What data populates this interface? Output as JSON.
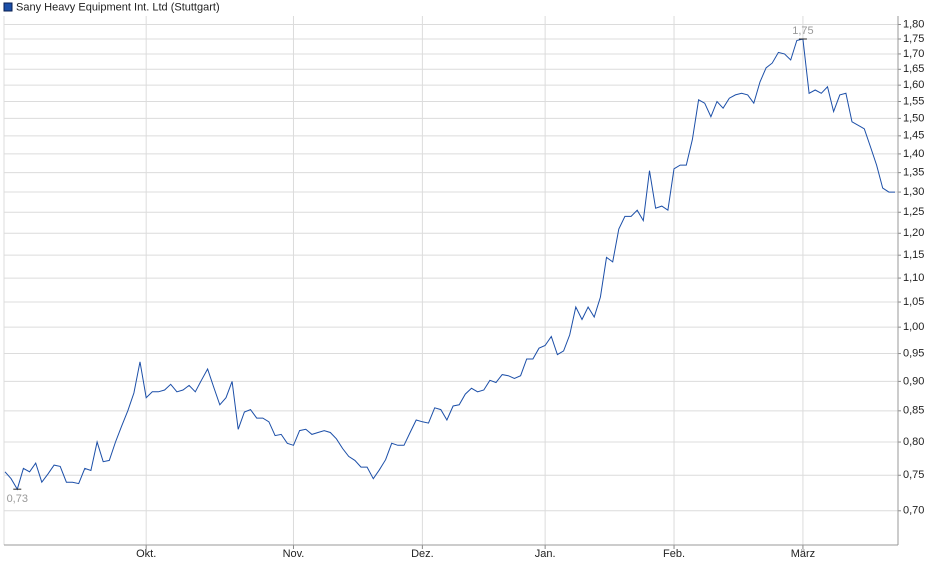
{
  "chart_data": {
    "type": "line",
    "categories": [
      null,
      null,
      null,
      null,
      null,
      null,
      null,
      null,
      null,
      null,
      null,
      null,
      null,
      null,
      null,
      null,
      null,
      null,
      null,
      null,
      null,
      null,
      null,
      "Okt.",
      null,
      null,
      null,
      null,
      null,
      null,
      null,
      null,
      null,
      null,
      null,
      null,
      null,
      null,
      null,
      null,
      null,
      null,
      null,
      null,
      null,
      null,
      null,
      "Nov.",
      null,
      null,
      null,
      null,
      null,
      null,
      null,
      null,
      null,
      null,
      null,
      null,
      null,
      null,
      null,
      null,
      null,
      null,
      null,
      null,
      "Dez.",
      null,
      null,
      null,
      null,
      null,
      null,
      null,
      null,
      null,
      null,
      null,
      null,
      null,
      null,
      null,
      null,
      null,
      null,
      null,
      "Jan.",
      null,
      null,
      null,
      null,
      null,
      null,
      null,
      null,
      null,
      null,
      null,
      null,
      null,
      null,
      null,
      null,
      null,
      null,
      null,
      null,
      "Feb.",
      null,
      null,
      null,
      null,
      null,
      null,
      null,
      null,
      null,
      null,
      null,
      null,
      null,
      null,
      null,
      null,
      null,
      null,
      null,
      null,
      "März",
      null,
      null,
      null,
      null,
      null,
      null,
      null,
      null,
      null,
      null,
      null,
      null,
      null,
      null,
      null
    ],
    "series": [
      {
        "name": "Sany Heavy Equipment Int. Ltd (Stuttgart)",
        "color": "#1c4fa8",
        "values": [
          0.755,
          0.745,
          0.73,
          0.76,
          0.755,
          0.768,
          0.74,
          0.752,
          0.765,
          0.763,
          0.74,
          0.74,
          0.738,
          0.76,
          0.757,
          0.8,
          0.77,
          0.772,
          0.8,
          0.825,
          0.85,
          0.88,
          0.935,
          0.872,
          0.882,
          0.882,
          0.885,
          0.895,
          0.882,
          0.885,
          0.893,
          0.882,
          0.902,
          0.922,
          0.89,
          0.86,
          0.872,
          0.9,
          0.82,
          0.848,
          0.852,
          0.838,
          0.838,
          0.832,
          0.81,
          0.812,
          0.798,
          0.795,
          0.818,
          0.82,
          0.812,
          0.815,
          0.818,
          0.815,
          0.805,
          0.79,
          0.778,
          0.772,
          0.762,
          0.762,
          0.745,
          0.758,
          0.773,
          0.798,
          0.795,
          0.795,
          0.815,
          0.835,
          0.832,
          0.83,
          0.855,
          0.852,
          0.835,
          0.858,
          0.86,
          0.878,
          0.888,
          0.882,
          0.885,
          0.902,
          0.898,
          0.912,
          0.91,
          0.905,
          0.91,
          0.94,
          0.94,
          0.96,
          0.965,
          0.982,
          0.948,
          0.955,
          0.985,
          1.04,
          1.015,
          1.04,
          1.02,
          1.06,
          1.145,
          1.135,
          1.21,
          1.24,
          1.24,
          1.255,
          1.23,
          1.355,
          1.26,
          1.265,
          1.255,
          1.36,
          1.37,
          1.37,
          1.44,
          1.555,
          1.545,
          1.505,
          1.55,
          1.53,
          1.56,
          1.57,
          1.575,
          1.57,
          1.545,
          1.61,
          1.655,
          1.67,
          1.705,
          1.7,
          1.68,
          1.745,
          1.75,
          1.575,
          1.585,
          1.575,
          1.595,
          1.52,
          1.57,
          1.575,
          1.49,
          1.48,
          1.47,
          1.42,
          1.37,
          1.31,
          1.3,
          1.3
        ]
      }
    ],
    "high_label": "1,75",
    "low_label": "0,73",
    "log_scale": true,
    "grid": true,
    "legend": "top-left",
    "ylim": [
      0.655,
      1.83
    ],
    "yticks": [
      {
        "value": 0.7,
        "label": "0,70"
      },
      {
        "value": 0.75,
        "label": "0,75"
      },
      {
        "value": 0.8,
        "label": "0,80"
      },
      {
        "value": 0.85,
        "label": "0,85"
      },
      {
        "value": 0.9,
        "label": "0,90"
      },
      {
        "value": 0.95,
        "label": "0,95"
      },
      {
        "value": 1.0,
        "label": "1,00"
      },
      {
        "value": 1.05,
        "label": "1,05"
      },
      {
        "value": 1.1,
        "label": "1,10"
      },
      {
        "value": 1.15,
        "label": "1,15"
      },
      {
        "value": 1.2,
        "label": "1,20"
      },
      {
        "value": 1.25,
        "label": "1,25"
      },
      {
        "value": 1.3,
        "label": "1,30"
      },
      {
        "value": 1.35,
        "label": "1,35"
      },
      {
        "value": 1.4,
        "label": "1,40"
      },
      {
        "value": 1.45,
        "label": "1,45"
      },
      {
        "value": 1.5,
        "label": "1,50"
      },
      {
        "value": 1.55,
        "label": "1,55"
      },
      {
        "value": 1.6,
        "label": "1,60"
      },
      {
        "value": 1.65,
        "label": "1,65"
      },
      {
        "value": 1.7,
        "label": "1,70"
      },
      {
        "value": 1.75,
        "label": "1,75"
      },
      {
        "value": 1.8,
        "label": "1,80"
      }
    ]
  }
}
